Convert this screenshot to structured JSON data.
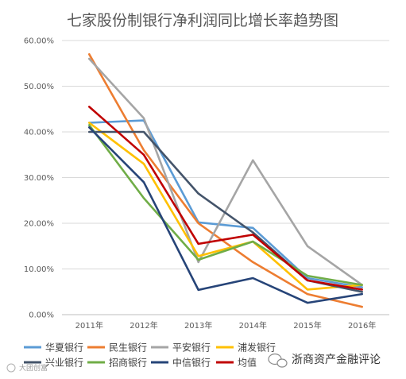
{
  "chart_data": {
    "type": "line",
    "title": "七家股份制银行净利润同比增长率趋势图",
    "categories": [
      "2011年",
      "2012年",
      "2013年",
      "2014年",
      "2015年",
      "2016年"
    ],
    "ylim": [
      0,
      60
    ],
    "yticks": [
      "0.00%",
      "10.00%",
      "20.00%",
      "30.00%",
      "40.00%",
      "50.00%",
      "60.00%"
    ],
    "grid": true,
    "legend_position": "bottom",
    "series": [
      {
        "name": "华夏银行",
        "color": "#5B9BD5",
        "values": [
          42.0,
          42.5,
          20.2,
          19.0,
          8.0,
          6.0
        ]
      },
      {
        "name": "民生银行",
        "color": "#ED7D31",
        "values": [
          57.0,
          36.0,
          20.0,
          11.5,
          4.5,
          1.7
        ]
      },
      {
        "name": "平安银行",
        "color": "#A5A5A5",
        "values": [
          56.0,
          43.0,
          11.5,
          33.8,
          15.0,
          6.5
        ]
      },
      {
        "name": "浦发银行",
        "color": "#FFC000",
        "values": [
          42.0,
          33.0,
          12.8,
          16.0,
          5.5,
          6.5
        ]
      },
      {
        "name": "兴业银行",
        "color": "#44546A",
        "values": [
          40.0,
          40.0,
          26.5,
          18.0,
          7.5,
          5.0
        ]
      },
      {
        "name": "招商银行",
        "color": "#70AD47",
        "values": [
          41.5,
          25.5,
          12.0,
          16.0,
          8.5,
          6.5
        ]
      },
      {
        "name": "中信银行",
        "color": "#264478",
        "values": [
          41.0,
          29.0,
          5.4,
          8.0,
          2.6,
          4.5
        ]
      },
      {
        "name": "均值",
        "color": "#C00000",
        "values": [
          45.5,
          35.0,
          15.5,
          17.5,
          7.5,
          5.5
        ]
      }
    ]
  },
  "watermark": {
    "right_text": "浙商资产金融评论",
    "left_text": "大团创富"
  }
}
